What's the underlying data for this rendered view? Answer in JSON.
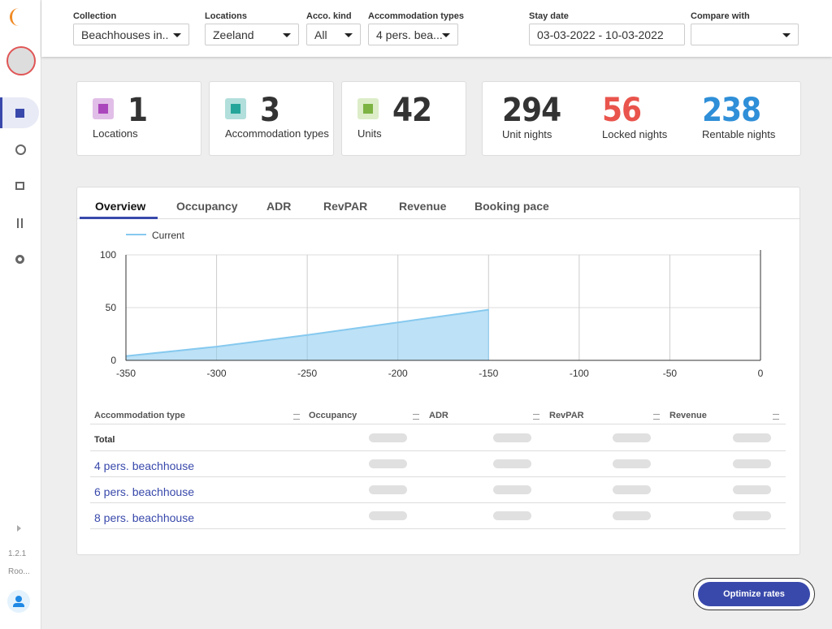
{
  "sidebar": {
    "version": "1.2.1",
    "account": "Roo..."
  },
  "filters": [
    {
      "label": "Collection",
      "value": "Beachhouses in.."
    },
    {
      "label": "Locations",
      "value": "Zeeland"
    },
    {
      "label": "Acco. kind",
      "value": "All"
    },
    {
      "label": "Accommodation types",
      "value": "4 pers. bea..."
    },
    {
      "label": "Stay date",
      "value": "03-03-2022 - 10-03-2022"
    },
    {
      "label": "Compare with"
    }
  ],
  "stats": [
    {
      "value": 1,
      "label": "Locations"
    },
    {
      "value": 3,
      "label": "Accommodation types"
    },
    {
      "value": 42,
      "label": "Units"
    }
  ],
  "nights": [
    {
      "value": 294,
      "label": "Unit nights",
      "color": "#333333"
    },
    {
      "value": 56,
      "label": "Locked nights",
      "color": "#e9544c"
    },
    {
      "value": 238,
      "label": "Rentable nights",
      "color": "#2f8fd8"
    }
  ],
  "tabs": [
    "Overview",
    "Occupancy",
    "ADR",
    "RevPAR",
    "Revenue",
    "Booking pace"
  ],
  "chart_data": {
    "type": "area",
    "x": [
      -350,
      -300,
      -250,
      -200,
      -150
    ],
    "series": [
      {
        "name": "Current",
        "color": "#86c9ef",
        "values": [
          4,
          13,
          24,
          36,
          48
        ]
      }
    ],
    "xlim": [
      -350,
      0
    ],
    "xticks": [
      -350,
      -300,
      -250,
      -200,
      -150,
      -100,
      -50,
      0
    ],
    "ylim": [
      0,
      100
    ],
    "yticks": [
      0,
      50,
      100
    ],
    "grid": true,
    "legend": "top-left"
  },
  "table": {
    "headers": [
      "Accommodation type",
      "Occupancy",
      "ADR",
      "RevPAR",
      "Revenue"
    ],
    "rows": [
      "Total",
      "4 pers. beachhouse",
      "6 pers. beachhouse",
      "8 pers. beachhouse"
    ]
  },
  "button": "Optimize rates"
}
